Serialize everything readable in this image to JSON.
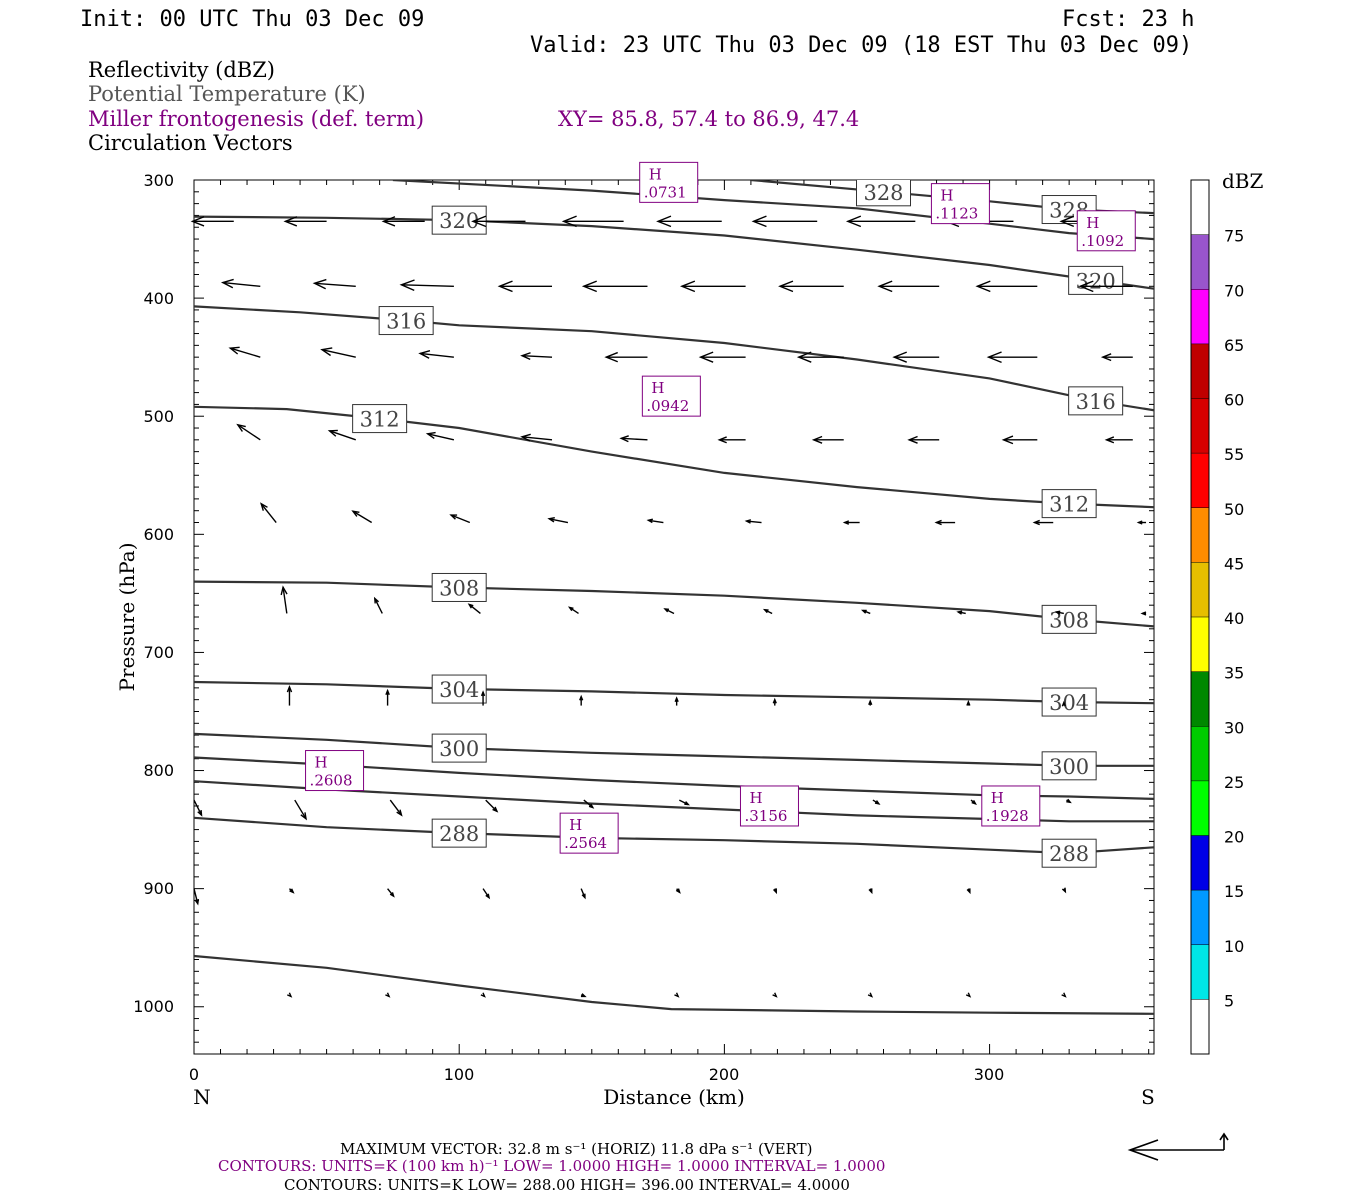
{
  "header": {
    "init": "Init: 00 UTC Thu 03 Dec 09",
    "fcst": "Fcst:   23 h",
    "valid": "Valid: 23 UTC Thu 03 Dec 09 (18 EST Thu 03 Dec 09)"
  },
  "legend": {
    "line1": "Reflectivity (dBZ)",
    "line2": "Potential Temperature (K)",
    "line3": "Miller frontogenesis (def. term)",
    "xy": "XY=  85.8, 57.4 to  86.9, 47.4",
    "line4": "Circulation Vectors"
  },
  "colors": {
    "theta": "#333333",
    "frontogenesis": "#800080",
    "vectors": "#000000",
    "dbz_scale": [
      "#ffffff",
      "#00e6e6",
      "#0099ff",
      "#0000e6",
      "#00ff00",
      "#00cc00",
      "#008800",
      "#ffff00",
      "#e6bf00",
      "#ff8c00",
      "#ff0000",
      "#d60000",
      "#c00000",
      "#ff00ff",
      "#9955cc",
      "#ffffff"
    ]
  },
  "colorbar": {
    "title": "dBZ",
    "labels": [
      "5",
      "10",
      "15",
      "20",
      "25",
      "30",
      "35",
      "40",
      "45",
      "50",
      "55",
      "60",
      "65",
      "70",
      "75"
    ]
  },
  "axes": {
    "xlabel": "Distance (km)",
    "ylabel": "Pressure (hPa)",
    "left_end": "N",
    "right_end": "S",
    "xticks": [
      "0",
      "100",
      "200",
      "300"
    ],
    "yticks": [
      "300",
      "400",
      "500",
      "600",
      "700",
      "800",
      "900",
      "1000"
    ]
  },
  "chart_data": {
    "type": "cross-section",
    "x_range": [
      0,
      362
    ],
    "y_range": [
      300,
      1040
    ],
    "y_inverted": true,
    "theta_contours": [
      {
        "label": "288",
        "points": [
          [
            0,
            840
          ],
          [
            50,
            848
          ],
          [
            100,
            853
          ],
          [
            150,
            857
          ],
          [
            200,
            859
          ],
          [
            250,
            862
          ],
          [
            300,
            867
          ],
          [
            330,
            870
          ],
          [
            362,
            865
          ]
        ]
      },
      {
        "label": "",
        "points": [
          [
            0,
            809
          ],
          [
            50,
            816
          ],
          [
            100,
            822
          ],
          [
            150,
            828
          ],
          [
            200,
            833
          ],
          [
            250,
            838
          ],
          [
            300,
            841
          ],
          [
            330,
            843
          ],
          [
            362,
            843
          ]
        ]
      },
      {
        "label": "",
        "points": [
          [
            0,
            789
          ],
          [
            50,
            795
          ],
          [
            100,
            802
          ],
          [
            150,
            808
          ],
          [
            200,
            813
          ],
          [
            250,
            817
          ],
          [
            300,
            821
          ],
          [
            330,
            822
          ],
          [
            362,
            824
          ]
        ]
      },
      {
        "label": "300",
        "points": [
          [
            0,
            769
          ],
          [
            50,
            774
          ],
          [
            100,
            781
          ],
          [
            150,
            785
          ],
          [
            200,
            788
          ],
          [
            250,
            791
          ],
          [
            300,
            794
          ],
          [
            330,
            796
          ],
          [
            362,
            796
          ]
        ]
      },
      {
        "label": "304",
        "points": [
          [
            0,
            725
          ],
          [
            50,
            727
          ],
          [
            100,
            731
          ],
          [
            150,
            733
          ],
          [
            200,
            736
          ],
          [
            250,
            738
          ],
          [
            300,
            740
          ],
          [
            330,
            742
          ],
          [
            362,
            743
          ]
        ]
      },
      {
        "label": "308",
        "points": [
          [
            0,
            640
          ],
          [
            50,
            641
          ],
          [
            100,
            645
          ],
          [
            150,
            648
          ],
          [
            200,
            652
          ],
          [
            250,
            658
          ],
          [
            300,
            665
          ],
          [
            330,
            672
          ],
          [
            362,
            678
          ]
        ]
      },
      {
        "label": "312",
        "points": [
          [
            0,
            492
          ],
          [
            35,
            494
          ],
          [
            70,
            502
          ],
          [
            100,
            510
          ],
          [
            150,
            530
          ],
          [
            200,
            548
          ],
          [
            250,
            560
          ],
          [
            300,
            570
          ],
          [
            330,
            574
          ],
          [
            362,
            577
          ]
        ]
      },
      {
        "label": "316",
        "points": [
          [
            0,
            407
          ],
          [
            40,
            412
          ],
          [
            80,
            419
          ],
          [
            100,
            423
          ],
          [
            150,
            428
          ],
          [
            200,
            438
          ],
          [
            250,
            452
          ],
          [
            300,
            468
          ],
          [
            340,
            487
          ],
          [
            362,
            495
          ]
        ]
      },
      {
        "label": "320",
        "points": [
          [
            0,
            331
          ],
          [
            50,
            332
          ],
          [
            100,
            334
          ],
          [
            150,
            339
          ],
          [
            200,
            347
          ],
          [
            250,
            359
          ],
          [
            300,
            372
          ],
          [
            340,
            385
          ],
          [
            362,
            392
          ]
        ]
      },
      {
        "label": "",
        "points": [
          [
            75,
            300
          ],
          [
            150,
            309
          ],
          [
            200,
            317
          ],
          [
            250,
            324
          ],
          [
            300,
            337
          ],
          [
            330,
            345
          ],
          [
            362,
            350
          ]
        ]
      },
      {
        "label": "328",
        "points": [
          [
            210,
            300
          ],
          [
            260,
            310
          ],
          [
            300,
            318
          ],
          [
            330,
            325
          ],
          [
            362,
            328
          ]
        ]
      },
      {
        "label": "",
        "points": [
          [
            0,
            957
          ],
          [
            50,
            967
          ],
          [
            100,
            982
          ],
          [
            150,
            996
          ],
          [
            180,
            1002
          ],
          [
            250,
            1004
          ],
          [
            300,
            1005
          ],
          [
            362,
            1006
          ]
        ]
      }
    ],
    "frontogenesis_highs": [
      {
        "label": "H",
        "value": ".0731",
        "x": 179,
        "p": 302
      },
      {
        "label": "H",
        "value": ".1123",
        "x": 289,
        "p": 320
      },
      {
        "label": "H",
        "value": ".1092",
        "x": 344,
        "p": 343
      },
      {
        "label": "H",
        "value": ".0942",
        "x": 180,
        "p": 483
      },
      {
        "label": "H",
        "value": ".2608",
        "x": 53,
        "p": 800
      },
      {
        "label": "H",
        "value": ".3156",
        "x": 217,
        "p": 830
      },
      {
        "label": "H",
        "value": ".1928",
        "x": 308,
        "p": 830
      },
      {
        "label": "H",
        "value": ".2564",
        "x": 149,
        "p": 853
      }
    ],
    "vectors": [
      {
        "p": 335,
        "x": [
          15,
          50,
          87,
          125,
          162,
          199,
          235,
          272,
          309,
          344
        ],
        "u": [
          -0.55,
          -0.55,
          -0.55,
          -0.7,
          -0.8,
          -0.85,
          -0.85,
          -0.9,
          -0.9,
          -0.6
        ],
        "w": [
          0,
          0,
          0,
          0,
          0,
          0,
          0,
          0,
          0,
          0
        ]
      },
      {
        "p": 390,
        "x": [
          25,
          61,
          98,
          135,
          171,
          208,
          245,
          281,
          318,
          354
        ],
        "u": [
          -0.5,
          -0.55,
          -0.7,
          -0.7,
          -0.85,
          -0.85,
          -0.85,
          -0.8,
          -0.8,
          -0.7
        ],
        "w": [
          0.05,
          0.04,
          0.02,
          0,
          0,
          0,
          0,
          0,
          0,
          0
        ]
      },
      {
        "p": 450,
        "x": [
          25,
          61,
          98,
          135,
          171,
          208,
          245,
          281,
          318,
          354
        ],
        "u": [
          -0.4,
          -0.45,
          -0.45,
          -0.4,
          -0.55,
          -0.6,
          -0.6,
          -0.6,
          -0.65,
          -0.4
        ],
        "w": [
          0.12,
          0.1,
          0.05,
          0.02,
          0,
          0,
          0,
          0,
          0,
          0
        ]
      },
      {
        "p": 520,
        "x": [
          25,
          61,
          98,
          135,
          171,
          208,
          245,
          281,
          318,
          354
        ],
        "u": [
          -0.3,
          -0.35,
          -0.35,
          -0.4,
          -0.35,
          -0.35,
          -0.4,
          -0.4,
          -0.45,
          -0.35
        ],
        "w": [
          0.2,
          0.12,
          0.08,
          0.04,
          0.02,
          0,
          0,
          0,
          0,
          0
        ]
      },
      {
        "p": 590,
        "x": [
          31,
          67,
          104,
          141,
          177,
          214,
          251,
          287,
          324,
          359
        ],
        "u": [
          -0.2,
          -0.25,
          -0.25,
          -0.25,
          -0.2,
          -0.2,
          -0.2,
          -0.25,
          -0.25,
          -0.1
        ],
        "w": [
          0.25,
          0.15,
          0.1,
          0.05,
          0.03,
          0.02,
          0,
          0,
          0,
          0
        ]
      },
      {
        "p": 667,
        "x": [
          35,
          71,
          108,
          145,
          181,
          218,
          255,
          291,
          328,
          359
        ],
        "u": [
          -0.05,
          -0.1,
          -0.15,
          -0.12,
          -0.12,
          -0.1,
          -0.1,
          -0.1,
          -0.1,
          -0.05
        ],
        "w": [
          0.35,
          0.2,
          0.12,
          0.08,
          0.06,
          0.05,
          0.04,
          0.02,
          0.02,
          0
        ]
      },
      {
        "p": 745,
        "x": [
          36,
          73,
          109,
          146,
          182,
          219,
          255,
          292,
          328
        ],
        "u": [
          0,
          0,
          0,
          0,
          0,
          0,
          0,
          0,
          0
        ],
        "w": [
          0.25,
          0.2,
          0.18,
          0.12,
          0.1,
          0.08,
          0.06,
          0.05,
          0.04
        ]
      },
      {
        "p": 825,
        "x": [
          0,
          38,
          74,
          110,
          147,
          183,
          220,
          256,
          293,
          329
        ],
        "u": [
          0.1,
          0.15,
          0.15,
          0.15,
          0.12,
          0.12,
          0.1,
          0.08,
          0.06,
          0.05
        ],
        "w": [
          -0.2,
          -0.25,
          -0.2,
          -0.15,
          -0.1,
          -0.06,
          -0.05,
          -0.05,
          -0.05,
          -0.03
        ]
      },
      {
        "p": 900,
        "x": [
          0,
          36,
          73,
          109,
          146,
          182,
          219,
          255,
          292,
          328
        ],
        "u": [
          0.05,
          0.05,
          0.08,
          0.08,
          0.05,
          0.04,
          0.02,
          0.02,
          0.02,
          0.02
        ],
        "w": [
          -0.2,
          -0.05,
          -0.1,
          -0.12,
          -0.12,
          -0.05,
          -0.05,
          -0.05,
          -0.05,
          -0.04
        ]
      },
      {
        "p": 990,
        "x": [
          36,
          73,
          109,
          146,
          182,
          219,
          255,
          292,
          328
        ],
        "u": [
          0.02,
          0.02,
          0.02,
          0.05,
          0.02,
          0.02,
          0.02,
          0.02,
          0.02
        ],
        "w": [
          -0.02,
          -0.02,
          -0.02,
          -0.02,
          -0.02,
          -0.02,
          -0.02,
          -0.02,
          -0.02
        ]
      }
    ]
  },
  "footer": {
    "line1": "MAXIMUM VECTOR:  32.8 m s⁻¹ (HORIZ)          11.8 dPa s⁻¹ (VERT)",
    "line2": "CONTOURS:  UNITS=K (100 km h)⁻¹  LOW=   1.0000        HIGH=   1.0000        INTERVAL=    1.0000",
    "line3": "CONTOURS:  UNITS=K  LOW=   288.00        HIGH=   396.00        INTERVAL=    4.0000"
  }
}
